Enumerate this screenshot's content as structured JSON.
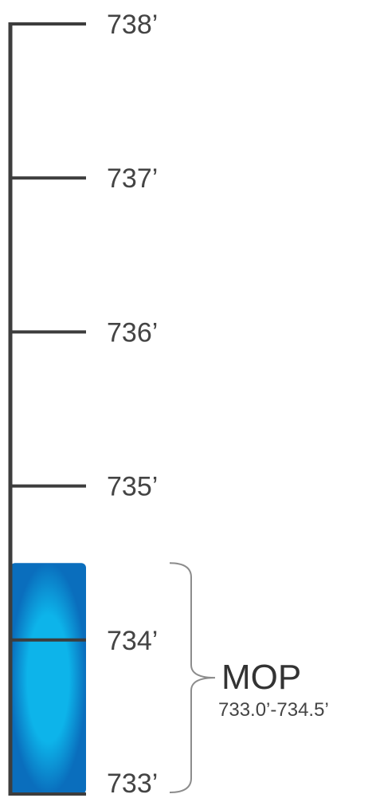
{
  "chart_data": {
    "type": "gauge",
    "scale_unit": "ft",
    "ticks": [
      {
        "value": 738,
        "label": "738’"
      },
      {
        "value": 737,
        "label": "737’"
      },
      {
        "value": 736,
        "label": "736’"
      },
      {
        "value": 735,
        "label": "735’"
      },
      {
        "value": 734,
        "label": "734’"
      },
      {
        "value": 733,
        "label": "733’"
      }
    ],
    "ylim": [
      733,
      738
    ],
    "water_level": {
      "from": 733.0,
      "to": 734.5
    },
    "range_bracket": {
      "from": 733.0,
      "to": 734.5,
      "label": "MOP",
      "sublabel": "733.0’-734.5’"
    }
  },
  "colors": {
    "scale_line": "#3d3d3d",
    "water_light": "#0db4ea",
    "water_dark": "#0a6ebd",
    "bracket": "#8c8c8c",
    "text": "#444444"
  }
}
